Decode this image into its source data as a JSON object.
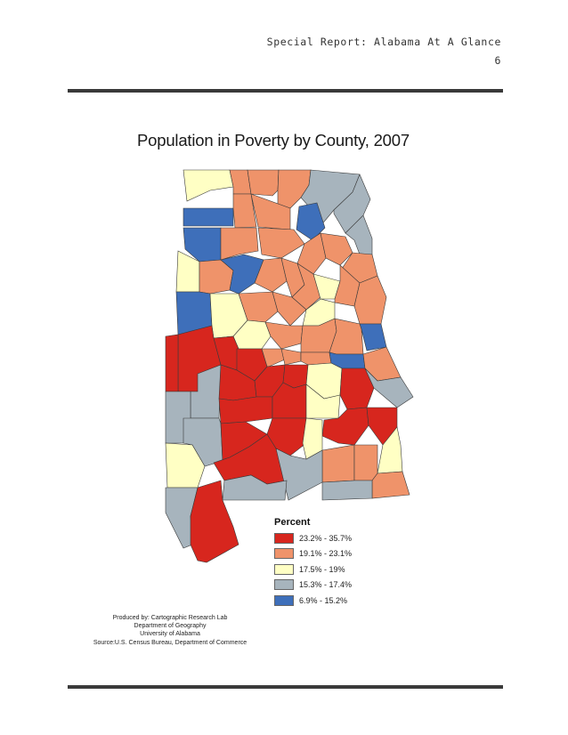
{
  "header": {
    "report_title": "Special Report: Alabama At A Glance",
    "page_number": "6"
  },
  "map": {
    "title": "Population in Poverty by County, 2007",
    "state": "Alabama",
    "legend": {
      "title": "Percent",
      "classes": [
        {
          "label": "23.2% - 35.7%",
          "color": "#d7261e"
        },
        {
          "label": "19.1% - 23.1%",
          "color": "#ef936a"
        },
        {
          "label": "17.5% - 19%",
          "color": "#ffffc4"
        },
        {
          "label": "15.3% - 17.4%",
          "color": "#a7b4bd"
        },
        {
          "label": "6.9% - 15.2%",
          "color": "#3e6fba"
        }
      ]
    },
    "credits": {
      "produced_by": "Produced by: Cartographic Research Lab",
      "department": "Department of Geography",
      "university": "University of Alabama",
      "source": "Source:U.S. Census Bureau, Department of Commerce"
    }
  }
}
